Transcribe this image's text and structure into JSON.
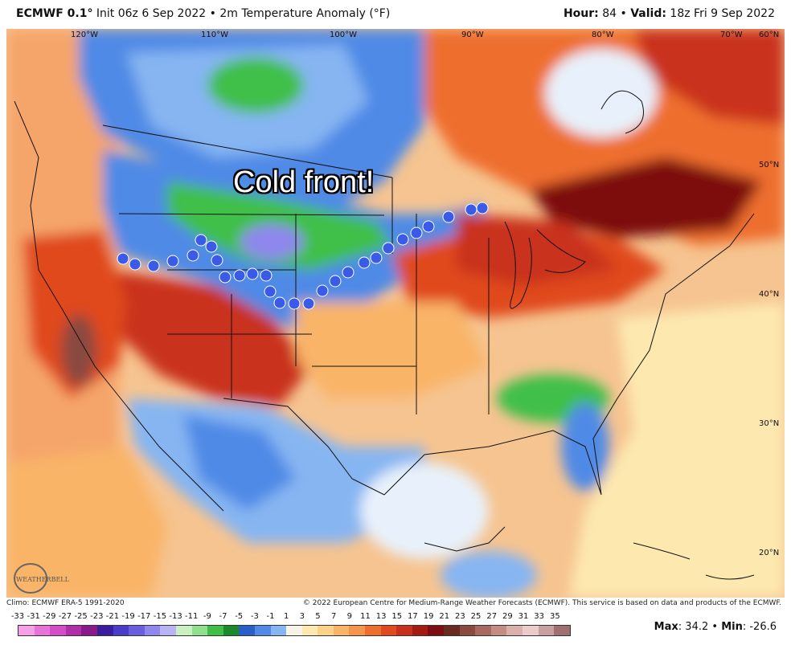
{
  "header": {
    "model": "ECMWF 0.1",
    "deg": "°",
    "init_text": "Init 06z 6 Sep 2022",
    "separator": "•",
    "product": "2m Temperature Anomaly (°F)",
    "hour_label": "Hour:",
    "hour_value": "84",
    "valid_label": "Valid:",
    "valid_value": "18z Fri 9 Sep 2022"
  },
  "map": {
    "annotation": "Cold front!",
    "longitude_labels": [
      "120°W",
      "110°W",
      "100°W",
      "90°W",
      "80°W",
      "70°W",
      "60°N"
    ],
    "latitude_labels": [
      "50°N",
      "40°N",
      "30°N",
      "20°N"
    ],
    "cold_front_color": "#3a5be8",
    "logo_text": "WEATHERBELL"
  },
  "footer": {
    "climo": "Climo: ECMWF ERA-5 1991-2020",
    "copyright": "© 2022 European Centre for Medium-Range Weather Forecasts (ECMWF). This service is based on data and products of the ECMWF."
  },
  "legend": {
    "labels": [
      "-33",
      "-31",
      "-29",
      "-27",
      "-25",
      "-23",
      "-21",
      "-19",
      "-17",
      "-15",
      "-13",
      "-11",
      "-9",
      "-7",
      "-5",
      "-3",
      "-1",
      "1",
      "3",
      "5",
      "7",
      "9",
      "11",
      "13",
      "15",
      "17",
      "19",
      "21",
      "23",
      "25",
      "27",
      "29",
      "31",
      "33",
      "35"
    ],
    "colors": [
      "#f5a0e8",
      "#e873d8",
      "#d44cc8",
      "#b02fa8",
      "#8a1a8a",
      "#3a1d9e",
      "#4a3cc8",
      "#6a5ee0",
      "#8f86ee",
      "#b9b3f5",
      "#c8f0c0",
      "#8fe08a",
      "#3fbf48",
      "#1a8a2a",
      "#2b5ec9",
      "#4f8ae6",
      "#86b5f2",
      "#f7f3e6",
      "#fde9b0",
      "#fcd28a",
      "#f9b468",
      "#f5944a",
      "#ee6e2e",
      "#e04a1e",
      "#c9301a",
      "#a61a14",
      "#7d0d10",
      "#6a2a22",
      "#8a4a40",
      "#a86a60",
      "#c48c84",
      "#dbb0aa",
      "#ecccc8",
      "#c9a0a0",
      "#a07070"
    ],
    "max_label": "Max",
    "max_value": "34.2",
    "min_label": "Min",
    "min_value": "-26.6"
  }
}
